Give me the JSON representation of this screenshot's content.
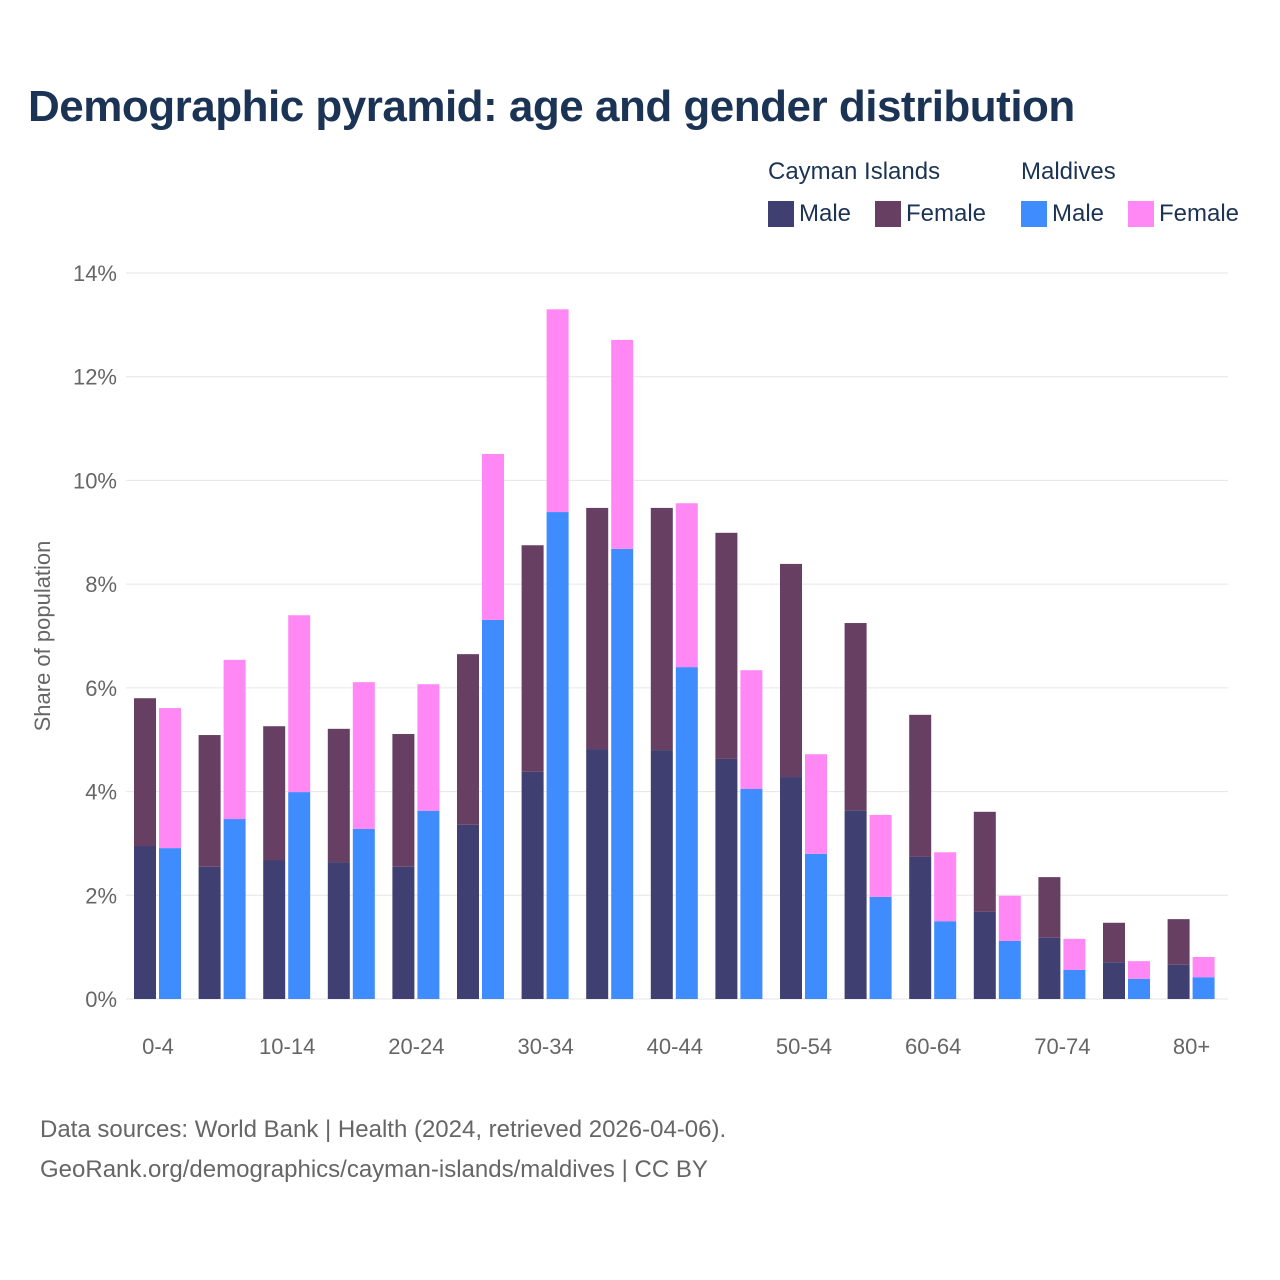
{
  "chart_data": {
    "type": "bar",
    "title": "Demographic pyramid: age and gender distribution",
    "ylabel": "Share of population",
    "xlabel": "",
    "ylim": [
      0,
      14
    ],
    "yticks": [
      "0%",
      "2%",
      "4%",
      "6%",
      "8%",
      "10%",
      "12%",
      "14%"
    ],
    "ytick_values": [
      0,
      2,
      4,
      6,
      8,
      10,
      12,
      14
    ],
    "grid": true,
    "legend_position": "top-right",
    "categories": [
      "0-4",
      "5-9",
      "10-14",
      "15-19",
      "20-24",
      "25-29",
      "30-34",
      "35-39",
      "40-44",
      "45-49",
      "50-54",
      "55-59",
      "60-64",
      "65-69",
      "70-74",
      "75-79",
      "80+"
    ],
    "visible_xticks": [
      "0-4",
      "10-14",
      "20-24",
      "30-34",
      "40-44",
      "50-54",
      "60-64",
      "70-74",
      "80+"
    ],
    "groups": [
      {
        "name": "Cayman Islands",
        "series": [
          {
            "name": "Male",
            "color": "#3f3f72",
            "values": [
              2.95,
              2.55,
              2.68,
              2.64,
              2.55,
              3.36,
              4.38,
              4.82,
              4.8,
              4.63,
              4.28,
              3.64,
              2.74,
              1.68,
              1.18,
              0.71,
              0.66
            ]
          },
          {
            "name": "Female",
            "color": "#663f63",
            "values": [
              2.85,
              2.54,
              2.58,
              2.57,
              2.56,
              3.29,
              4.37,
              4.65,
              4.67,
              4.36,
              4.11,
              3.61,
              2.74,
              1.93,
              1.17,
              0.76,
              0.88
            ]
          }
        ]
      },
      {
        "name": "Maldives",
        "series": [
          {
            "name": "Male",
            "color": "#3f8cff",
            "values": [
              2.91,
              3.47,
              3.99,
              3.28,
              3.63,
              7.31,
              9.39,
              8.68,
              6.4,
              4.05,
              2.8,
              1.97,
              1.5,
              1.12,
              0.56,
              0.39,
              0.42
            ]
          },
          {
            "name": "Female",
            "color": "#ff88f5",
            "values": [
              2.7,
              3.07,
              3.41,
              2.83,
              2.44,
              3.2,
              3.91,
              4.03,
              3.16,
              2.29,
              1.92,
              1.58,
              1.33,
              0.87,
              0.6,
              0.34,
              0.39
            ]
          }
        ]
      }
    ]
  },
  "footer": {
    "line1": "Data sources: World Bank | Health (2024, retrieved 2026-04-06).",
    "line2": "GeoRank.org/demographics/cayman-islands/maldives | CC BY"
  }
}
